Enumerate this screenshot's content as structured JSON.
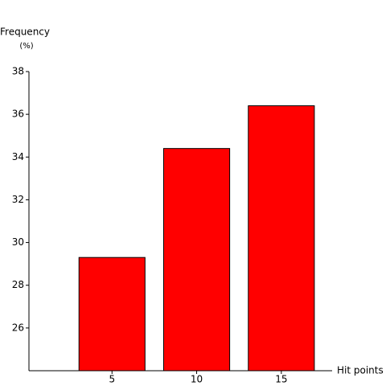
{
  "chart_data": {
    "type": "bar",
    "y_label": "Frequency",
    "y_unit": "(%)",
    "x_label": "Hit points",
    "x": [
      5,
      10,
      15
    ],
    "values": [
      29.3,
      34.4,
      36.4
    ],
    "color": "#ff0000",
    "xlim": [
      0,
      18
    ],
    "xticks": [
      5,
      10,
      15
    ],
    "ylim": [
      24,
      38
    ],
    "yticks": [
      26,
      28,
      30,
      32,
      34,
      36,
      38
    ]
  }
}
